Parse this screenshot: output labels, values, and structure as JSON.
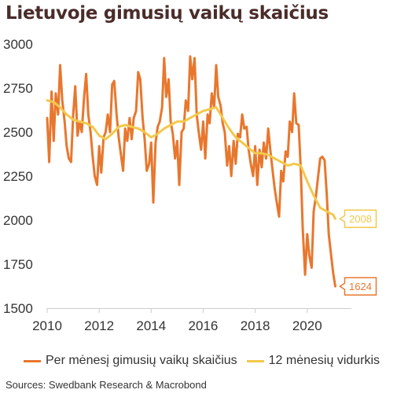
{
  "title": "Lietuvoje gimusių vaikų skaičius",
  "source": "Sources: Swedbank Research & Macrobond",
  "colors": {
    "monthly": "#e8772e",
    "average": "#f2c94c",
    "axis": "#cccccc",
    "text": "#333333"
  },
  "chart_data": {
    "type": "line",
    "xlim": [
      2010,
      2021.7
    ],
    "ylim": [
      1500,
      3000
    ],
    "xticks": [
      2010,
      2012,
      2014,
      2016,
      2018,
      2020
    ],
    "yticks": [
      1500,
      1750,
      2000,
      2250,
      2500,
      2750,
      3000
    ],
    "grid": false,
    "legend": "bottom",
    "series": [
      {
        "name": "Per mėnesį gimusių vaikų skaičius",
        "color": "#e8772e",
        "end_label": "1624",
        "points": [
          [
            2010.0,
            2580
          ],
          [
            2010.08,
            2330
          ],
          [
            2010.17,
            2730
          ],
          [
            2010.25,
            2450
          ],
          [
            2010.33,
            2720
          ],
          [
            2010.42,
            2600
          ],
          [
            2010.5,
            2880
          ],
          [
            2010.58,
            2680
          ],
          [
            2010.67,
            2560
          ],
          [
            2010.75,
            2420
          ],
          [
            2010.83,
            2350
          ],
          [
            2010.92,
            2330
          ],
          [
            2011.0,
            2600
          ],
          [
            2011.08,
            2760
          ],
          [
            2011.17,
            2480
          ],
          [
            2011.25,
            2560
          ],
          [
            2011.33,
            2500
          ],
          [
            2011.42,
            2700
          ],
          [
            2011.5,
            2830
          ],
          [
            2011.58,
            2600
          ],
          [
            2011.67,
            2500
          ],
          [
            2011.75,
            2360
          ],
          [
            2011.83,
            2250
          ],
          [
            2011.92,
            2200
          ],
          [
            2012.0,
            2420
          ],
          [
            2012.08,
            2270
          ],
          [
            2012.17,
            2470
          ],
          [
            2012.25,
            2500
          ],
          [
            2012.33,
            2600
          ],
          [
            2012.42,
            2500
          ],
          [
            2012.5,
            2770
          ],
          [
            2012.58,
            2790
          ],
          [
            2012.67,
            2600
          ],
          [
            2012.75,
            2470
          ],
          [
            2012.83,
            2380
          ],
          [
            2012.92,
            2280
          ],
          [
            2013.0,
            2520
          ],
          [
            2013.08,
            2450
          ],
          [
            2013.17,
            2580
          ],
          [
            2013.25,
            2460
          ],
          [
            2013.33,
            2580
          ],
          [
            2013.42,
            2620
          ],
          [
            2013.5,
            2840
          ],
          [
            2013.58,
            2800
          ],
          [
            2013.67,
            2580
          ],
          [
            2013.75,
            2460
          ],
          [
            2013.83,
            2280
          ],
          [
            2013.92,
            2320
          ],
          [
            2014.0,
            2440
          ],
          [
            2014.08,
            2100
          ],
          [
            2014.17,
            2440
          ],
          [
            2014.25,
            2530
          ],
          [
            2014.33,
            2560
          ],
          [
            2014.42,
            2640
          ],
          [
            2014.5,
            2920
          ],
          [
            2014.58,
            2700
          ],
          [
            2014.67,
            2800
          ],
          [
            2014.75,
            2560
          ],
          [
            2014.83,
            2490
          ],
          [
            2014.92,
            2350
          ],
          [
            2015.0,
            2450
          ],
          [
            2015.08,
            2200
          ],
          [
            2015.17,
            2500
          ],
          [
            2015.25,
            2520
          ],
          [
            2015.33,
            2680
          ],
          [
            2015.42,
            2620
          ],
          [
            2015.5,
            2930
          ],
          [
            2015.58,
            2800
          ],
          [
            2015.67,
            2920
          ],
          [
            2015.75,
            2600
          ],
          [
            2015.83,
            2500
          ],
          [
            2015.92,
            2400
          ],
          [
            2016.0,
            2560
          ],
          [
            2016.08,
            2350
          ],
          [
            2016.17,
            2600
          ],
          [
            2016.25,
            2550
          ],
          [
            2016.33,
            2720
          ],
          [
            2016.42,
            2640
          ],
          [
            2016.5,
            2880
          ],
          [
            2016.58,
            2700
          ],
          [
            2016.67,
            2650
          ],
          [
            2016.75,
            2550
          ],
          [
            2016.83,
            2500
          ],
          [
            2016.92,
            2310
          ],
          [
            2017.0,
            2420
          ],
          [
            2017.08,
            2250
          ],
          [
            2017.17,
            2450
          ],
          [
            2017.25,
            2320
          ],
          [
            2017.33,
            2490
          ],
          [
            2017.42,
            2470
          ],
          [
            2017.5,
            2600
          ],
          [
            2017.58,
            2520
          ],
          [
            2017.67,
            2530
          ],
          [
            2017.75,
            2400
          ],
          [
            2017.83,
            2320
          ],
          [
            2017.92,
            2250
          ],
          [
            2018.0,
            2420
          ],
          [
            2018.08,
            2200
          ],
          [
            2018.17,
            2400
          ],
          [
            2018.25,
            2300
          ],
          [
            2018.33,
            2440
          ],
          [
            2018.42,
            2350
          ],
          [
            2018.5,
            2520
          ],
          [
            2018.58,
            2400
          ],
          [
            2018.67,
            2280
          ],
          [
            2018.75,
            2180
          ],
          [
            2018.83,
            2100
          ],
          [
            2018.92,
            2020
          ],
          [
            2019.0,
            2280
          ],
          [
            2019.08,
            2220
          ],
          [
            2019.17,
            2390
          ],
          [
            2019.25,
            2360
          ],
          [
            2019.33,
            2560
          ],
          [
            2019.42,
            2500
          ],
          [
            2019.5,
            2720
          ],
          [
            2019.58,
            2550
          ],
          [
            2019.67,
            2540
          ],
          [
            2019.75,
            2300
          ],
          [
            2019.83,
            1950
          ],
          [
            2019.92,
            1690
          ],
          [
            2020.0,
            1920
          ],
          [
            2020.08,
            1800
          ],
          [
            2020.17,
            1730
          ],
          [
            2020.25,
            2050
          ],
          [
            2020.33,
            2130
          ],
          [
            2020.42,
            2250
          ],
          [
            2020.5,
            2350
          ],
          [
            2020.58,
            2360
          ],
          [
            2020.67,
            2340
          ],
          [
            2020.75,
            2150
          ],
          [
            2020.83,
            1920
          ],
          [
            2020.92,
            1800
          ],
          [
            2021.0,
            1700
          ],
          [
            2021.08,
            1624
          ]
        ]
      },
      {
        "name": "12 mėnesių vidurkis",
        "color": "#f2c94c",
        "end_label": "2008",
        "points": [
          [
            2010.0,
            2680
          ],
          [
            2010.25,
            2670
          ],
          [
            2010.5,
            2640
          ],
          [
            2010.75,
            2600
          ],
          [
            2011.0,
            2570
          ],
          [
            2011.25,
            2560
          ],
          [
            2011.5,
            2550
          ],
          [
            2011.75,
            2530
          ],
          [
            2012.0,
            2480
          ],
          [
            2012.25,
            2460
          ],
          [
            2012.5,
            2490
          ],
          [
            2012.75,
            2530
          ],
          [
            2013.0,
            2540
          ],
          [
            2013.25,
            2530
          ],
          [
            2013.5,
            2520
          ],
          [
            2013.75,
            2500
          ],
          [
            2014.0,
            2470
          ],
          [
            2014.25,
            2490
          ],
          [
            2014.5,
            2520
          ],
          [
            2014.75,
            2540
          ],
          [
            2015.0,
            2560
          ],
          [
            2015.25,
            2560
          ],
          [
            2015.5,
            2580
          ],
          [
            2015.75,
            2600
          ],
          [
            2016.0,
            2620
          ],
          [
            2016.25,
            2630
          ],
          [
            2016.5,
            2640
          ],
          [
            2016.75,
            2580
          ],
          [
            2017.0,
            2520
          ],
          [
            2017.25,
            2470
          ],
          [
            2017.5,
            2440
          ],
          [
            2017.75,
            2410
          ],
          [
            2018.0,
            2380
          ],
          [
            2018.25,
            2380
          ],
          [
            2018.5,
            2370
          ],
          [
            2018.75,
            2350
          ],
          [
            2019.0,
            2330
          ],
          [
            2019.25,
            2310
          ],
          [
            2019.5,
            2320
          ],
          [
            2019.75,
            2310
          ],
          [
            2020.0,
            2220
          ],
          [
            2020.25,
            2140
          ],
          [
            2020.5,
            2070
          ],
          [
            2020.75,
            2050
          ],
          [
            2021.0,
            2030
          ],
          [
            2021.08,
            2008
          ]
        ]
      }
    ]
  }
}
